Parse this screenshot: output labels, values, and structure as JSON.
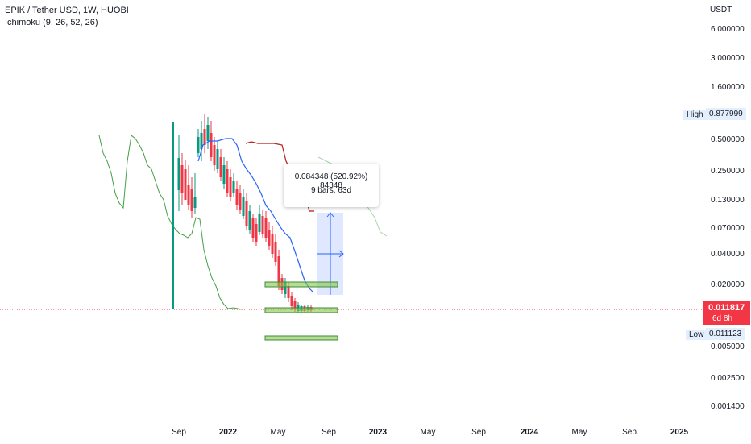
{
  "legend": {
    "symbol_title": "EPIK / Tether USD, 1W, HUOBI",
    "indicator": "Ichimoku (9, 26, 52, 26)"
  },
  "price_axis": {
    "unit": "USDT",
    "ticks": [
      "6.000000",
      "3.000000",
      "1.600000",
      "0.500000",
      "0.250000",
      "0.130000",
      "0.070000",
      "0.040000",
      "0.020000",
      "0.005000",
      "0.002500",
      "0.001400"
    ],
    "high_label": "High",
    "high_value": "0.877999",
    "low_label": "Low",
    "low_value": "0.011123",
    "last_price": "0.011817",
    "countdown": "6d 8h"
  },
  "time_axis": {
    "ticks": [
      {
        "label": "Sep",
        "year": false
      },
      {
        "label": "2022",
        "year": true
      },
      {
        "label": "May",
        "year": false
      },
      {
        "label": "Sep",
        "year": false
      },
      {
        "label": "2023",
        "year": true
      },
      {
        "label": "May",
        "year": false
      },
      {
        "label": "Sep",
        "year": false
      },
      {
        "label": "2024",
        "year": true
      },
      {
        "label": "May",
        "year": false
      },
      {
        "label": "Sep",
        "year": false
      },
      {
        "label": "2025",
        "year": true
      }
    ]
  },
  "measure_tooltip": {
    "line1": "0.084348 (520.92%) 84348",
    "line2": "9 bars, 63d"
  },
  "colors": {
    "up": "#089981",
    "down": "#f23645",
    "conversion_line": "#2962ff",
    "base_line": "#b71c1c",
    "lagging_span": "#43a047",
    "measure_fill": "#2962ff",
    "zone_fill": "#8bc34a",
    "zone_border": "#388e3c"
  }
}
